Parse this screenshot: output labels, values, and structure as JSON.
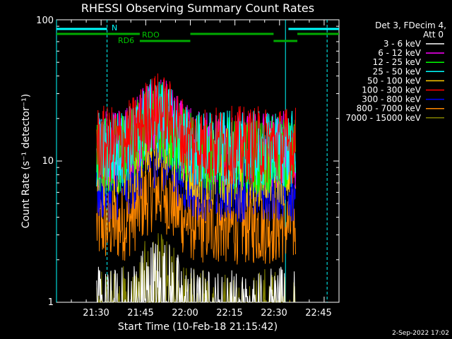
{
  "chart_data": {
    "type": "line",
    "title": "RHESSI Observing Summary Count Rates",
    "xlabel": "Start Time (10-Feb-18 21:15:42)",
    "ylabel": "Count Rate (s⁻¹ detector⁻¹)",
    "yscale": "log",
    "ylim": [
      1,
      100
    ],
    "xlim_minutes_after_21_15": [
      0,
      95
    ],
    "x_ticks": [
      "21:30",
      "21:45",
      "22:00",
      "22:15",
      "22:30",
      "22:45"
    ],
    "x_tick_minutes": [
      15,
      30,
      45,
      60,
      75,
      90
    ],
    "y_ticks": [
      "1",
      "10",
      "100"
    ],
    "legend_header": [
      "Det 3, FDecim 4,",
      "Att 0"
    ],
    "legend_position": "right",
    "series": [
      {
        "name": "3 - 6 keV",
        "color": "#ffffff",
        "level": 0.6
      },
      {
        "name": "6 - 12 keV",
        "color": "#ff00ff",
        "level": 12
      },
      {
        "name": "12 - 25 keV",
        "color": "#00ff00",
        "level": 11
      },
      {
        "name": "25 - 50 keV",
        "color": "#00ffff",
        "level": 12
      },
      {
        "name": "50 - 100 keV",
        "color": "#ffcc00",
        "level": 9
      },
      {
        "name": "100 - 300 keV",
        "color": "#ff0000",
        "level": 13
      },
      {
        "name": "300 - 800 keV",
        "color": "#0000ff",
        "level": 7
      },
      {
        "name": "800 - 7000 keV",
        "color": "#ff8800",
        "level": 3.5
      },
      {
        "name": "7000 - 15000 keV",
        "color": "#808000",
        "level": 0.6
      }
    ],
    "data_window_minutes": [
      13.5,
      80.5
    ],
    "peak_minutes": 34,
    "annotations": {
      "N_label": "N",
      "RDO_label": "RDO",
      "RD6_label": "RD6"
    },
    "bars": {
      "cyan_top": [
        [
          0,
          17
        ],
        [
          78,
          95
        ]
      ],
      "green_top": [
        [
          0,
          28
        ],
        [
          45,
          73
        ],
        [
          81,
          95
        ]
      ],
      "green_low": [
        [
          28,
          45
        ],
        [
          73,
          81
        ]
      ]
    },
    "vlines_cyan_solid_minutes": [
      0,
      77
    ],
    "vlines_cyan_dashed_minutes": [
      17,
      91
    ]
  },
  "footer": {
    "date": "2-Sep-2022 17:02"
  }
}
